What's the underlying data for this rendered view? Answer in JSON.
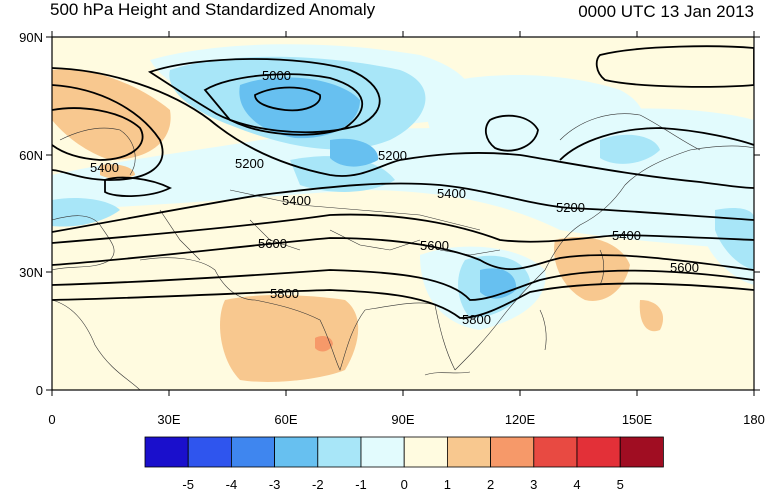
{
  "map": {
    "title": "500 hPa Height and Standardized Anomaly",
    "valid_time": "0000 UTC 13 Jan 2013",
    "lon_ticks": [
      "0",
      "30E",
      "60E",
      "90E",
      "120E",
      "150E",
      "180"
    ],
    "lat_ticks": [
      "0",
      "30N",
      "60N",
      "90N"
    ],
    "contour_labels": [
      "5000",
      "5200",
      "5200",
      "5200",
      "5400",
      "5400",
      "5400",
      "5400",
      "5600",
      "5600",
      "5600",
      "5800",
      "5800"
    ]
  },
  "colorbar": {
    "labels": [
      "-5",
      "-4",
      "-3",
      "-2",
      "-1",
      "0",
      "1",
      "2",
      "3",
      "4",
      "5"
    ],
    "colors": [
      "#1a0fcc",
      "#2f55ee",
      "#3f86ef",
      "#67c0f0",
      "#a8e6f8",
      "#e2fbfd",
      "#fffbe0",
      "#f8c88f",
      "#f69969",
      "#e84a42",
      "#e33038",
      "#a00d22"
    ]
  },
  "colors": {
    "land_base": "#fffbe0",
    "ocean_base": "#e7fbfb",
    "contour": "#000000"
  }
}
